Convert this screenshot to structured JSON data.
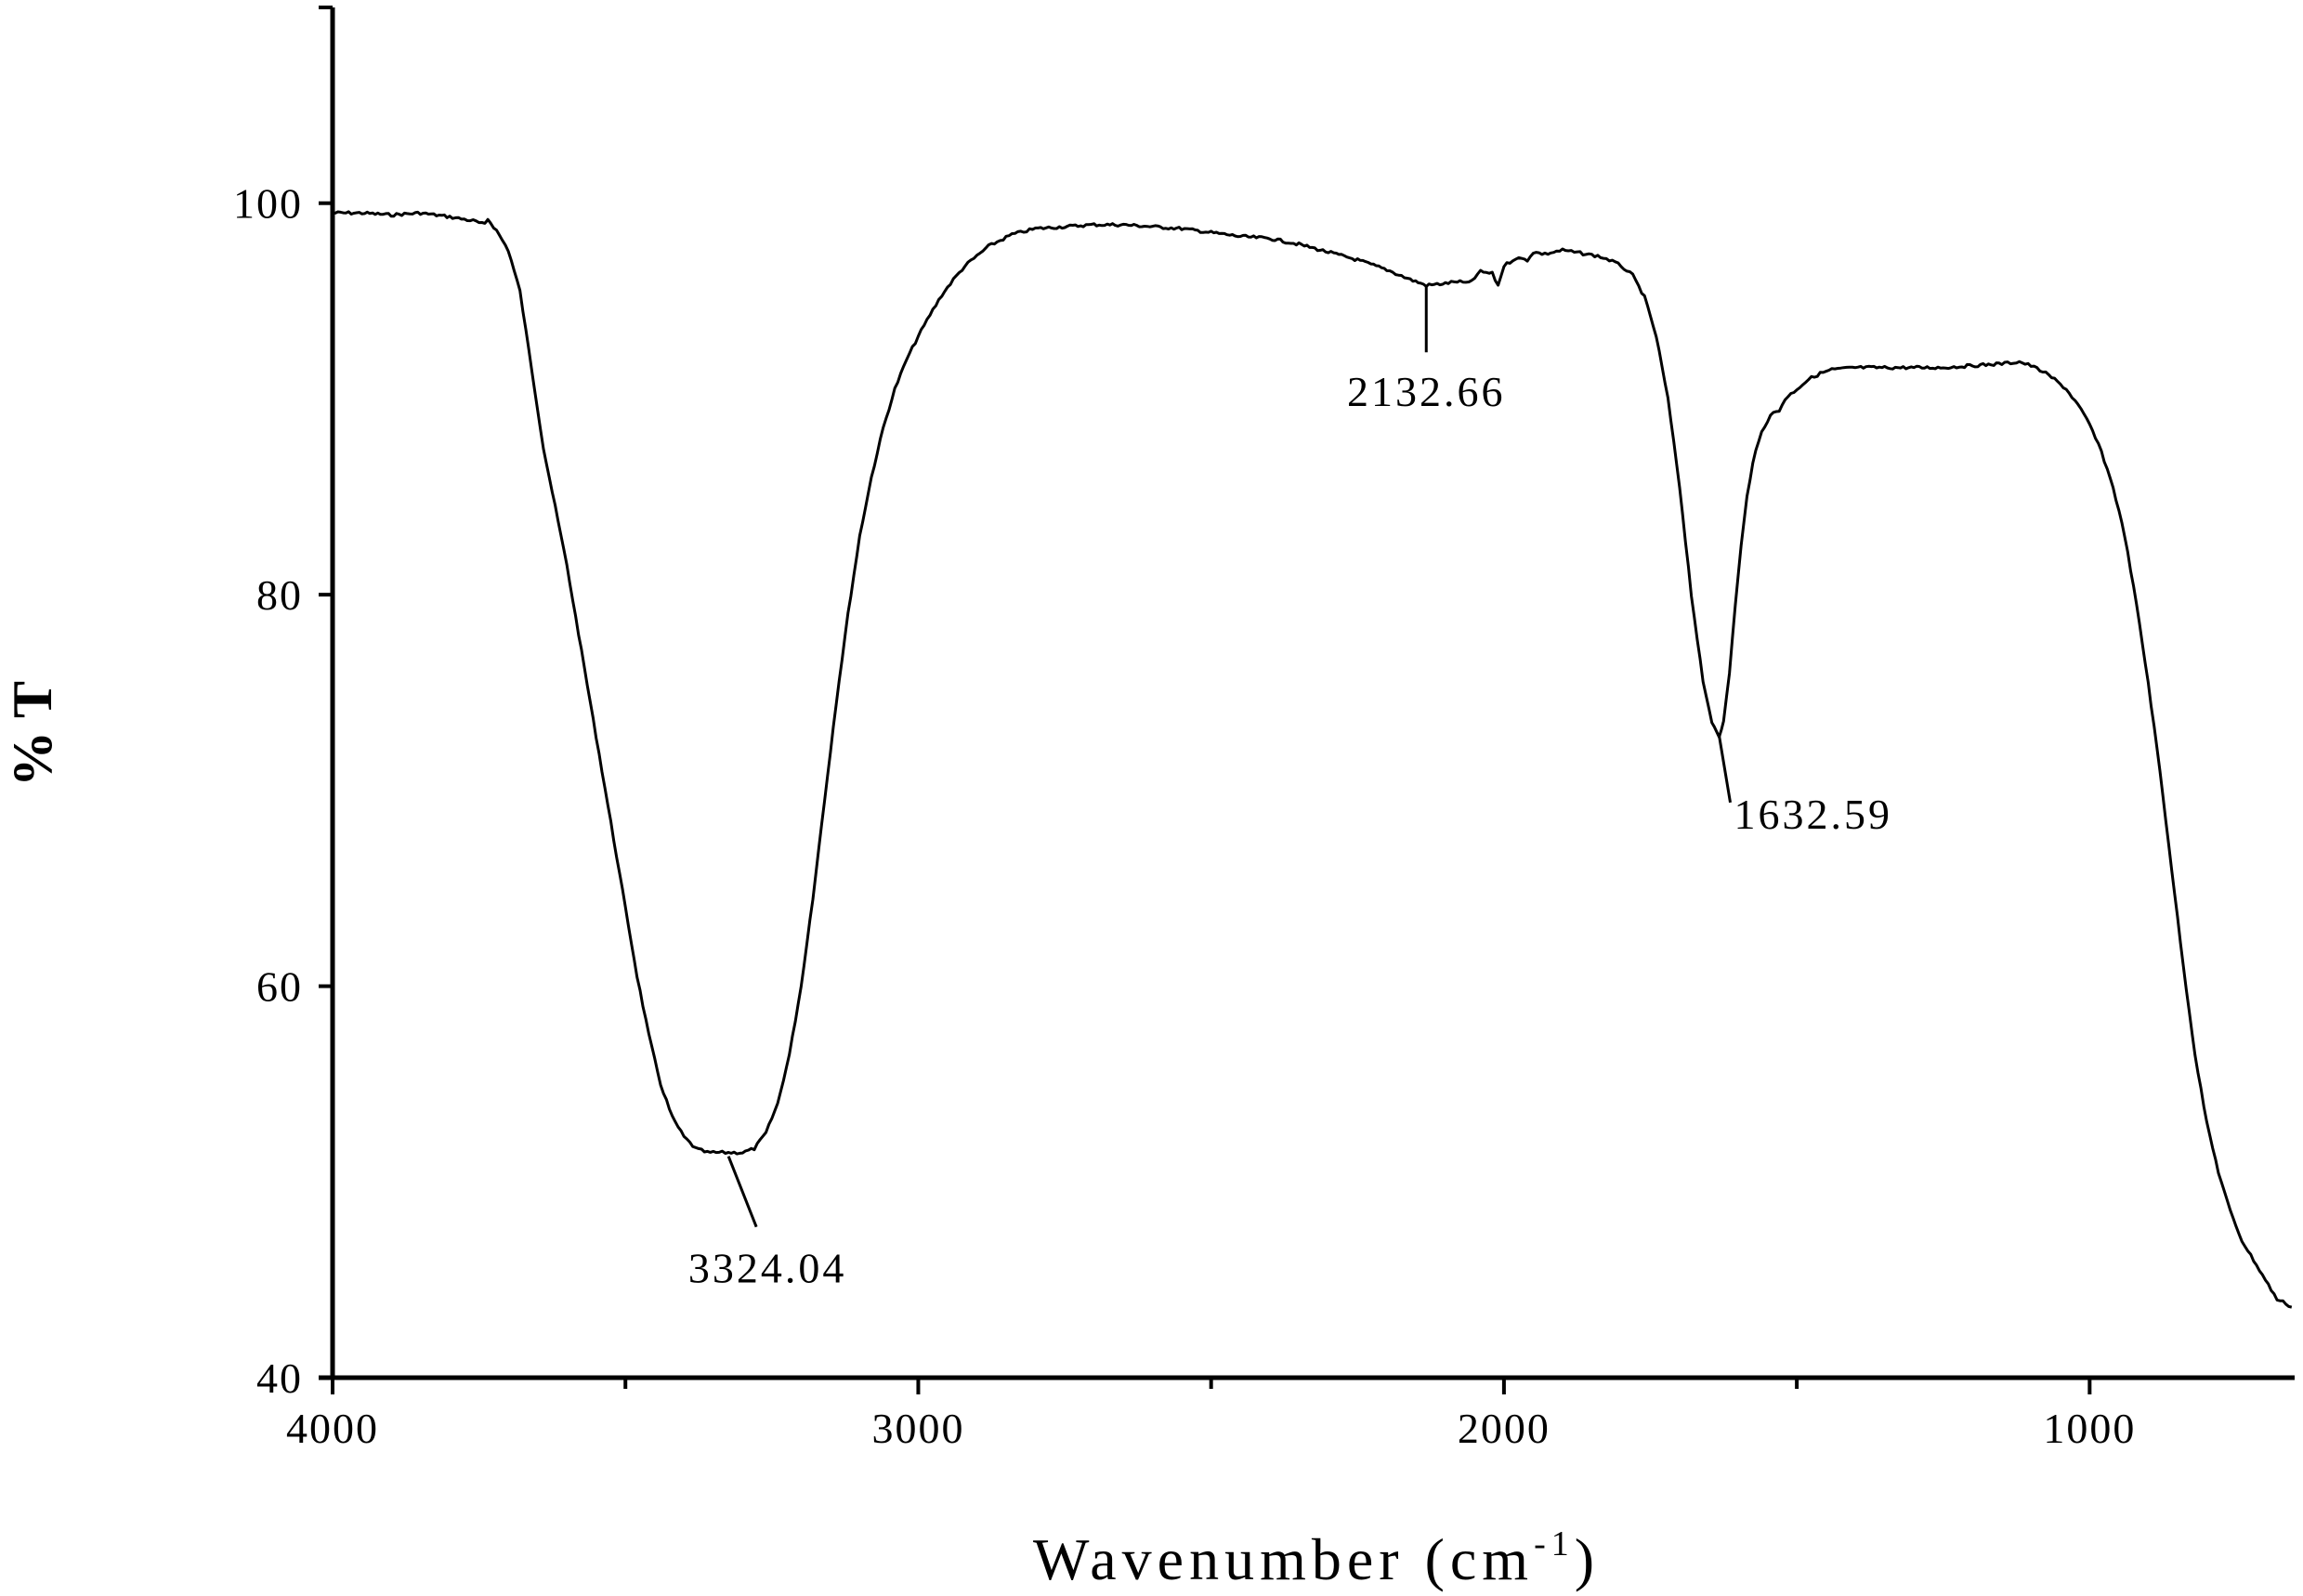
{
  "chart_data": {
    "type": "line",
    "title": "",
    "xlabel": "Wavenumber (cm",
    "xlabel_sup": "-1",
    "xlabel_close": ")",
    "ylabel": "% T",
    "xlim": [
      4000,
      650
    ],
    "ylim": [
      40,
      110
    ],
    "x_reversed": true,
    "grid": false,
    "x_ticks": [
      {
        "value": 4000,
        "label": "4000"
      },
      {
        "value": 3000,
        "label": "3000"
      },
      {
        "value": 2000,
        "label": "2000"
      },
      {
        "value": 1000,
        "label": "1000"
      }
    ],
    "x_minor_ticks": [
      3500,
      2500,
      1500
    ],
    "y_ticks": [
      {
        "value": 100,
        "label": "100"
      },
      {
        "value": 80,
        "label": "80"
      },
      {
        "value": 60,
        "label": "60"
      },
      {
        "value": 40,
        "label": "40"
      }
    ],
    "series": [
      {
        "points": [
          [
            4000,
            99.5
          ],
          [
            3950,
            99.5
          ],
          [
            3900,
            99.4
          ],
          [
            3850,
            99.5
          ],
          [
            3800,
            99.3
          ],
          [
            3760,
            99.1
          ],
          [
            3740,
            98.9
          ],
          [
            3735,
            99.2
          ],
          [
            3720,
            98.6
          ],
          [
            3700,
            97.6
          ],
          [
            3680,
            95.5
          ],
          [
            3660,
            91.5
          ],
          [
            3640,
            87.5
          ],
          [
            3620,
            84.5
          ],
          [
            3600,
            81.5
          ],
          [
            3580,
            78.0
          ],
          [
            3560,
            74.5
          ],
          [
            3540,
            71.0
          ],
          [
            3520,
            67.5
          ],
          [
            3500,
            64.0
          ],
          [
            3480,
            60.5
          ],
          [
            3460,
            57.5
          ],
          [
            3440,
            55.0
          ],
          [
            3420,
            53.3
          ],
          [
            3400,
            52.3
          ],
          [
            3380,
            51.7
          ],
          [
            3360,
            51.5
          ],
          [
            3340,
            51.5
          ],
          [
            3324.04,
            51.5
          ],
          [
            3300,
            51.5
          ],
          [
            3280,
            51.7
          ],
          [
            3260,
            52.5
          ],
          [
            3240,
            54.0
          ],
          [
            3220,
            56.5
          ],
          [
            3200,
            60.0
          ],
          [
            3180,
            64.5
          ],
          [
            3160,
            69.5
          ],
          [
            3140,
            74.5
          ],
          [
            3120,
            79.0
          ],
          [
            3100,
            83.0
          ],
          [
            3080,
            86.0
          ],
          [
            3060,
            88.5
          ],
          [
            3040,
            90.5
          ],
          [
            3020,
            92.0
          ],
          [
            3000,
            93.2
          ],
          [
            2980,
            94.3
          ],
          [
            2960,
            95.3
          ],
          [
            2940,
            96.1
          ],
          [
            2920,
            96.8
          ],
          [
            2900,
            97.3
          ],
          [
            2880,
            97.8
          ],
          [
            2860,
            98.1
          ],
          [
            2840,
            98.4
          ],
          [
            2800,
            98.7
          ],
          [
            2750,
            98.8
          ],
          [
            2700,
            98.9
          ],
          [
            2650,
            98.9
          ],
          [
            2600,
            98.8
          ],
          [
            2550,
            98.7
          ],
          [
            2500,
            98.5
          ],
          [
            2450,
            98.3
          ],
          [
            2400,
            98.2
          ],
          [
            2350,
            97.9
          ],
          [
            2300,
            97.5
          ],
          [
            2250,
            97.1
          ],
          [
            2200,
            96.6
          ],
          [
            2160,
            96.1
          ],
          [
            2132.66,
            95.8
          ],
          [
            2100,
            95.9
          ],
          [
            2080,
            96.0
          ],
          [
            2060,
            95.9
          ],
          [
            2040,
            96.5
          ],
          [
            2020,
            96.4
          ],
          [
            2010,
            95.8
          ],
          [
            2000,
            96.8
          ],
          [
            1980,
            97.2
          ],
          [
            1960,
            97.1
          ],
          [
            1950,
            97.5
          ],
          [
            1930,
            97.4
          ],
          [
            1900,
            97.6
          ],
          [
            1880,
            97.5
          ],
          [
            1860,
            97.4
          ],
          [
            1840,
            97.3
          ],
          [
            1820,
            97.1
          ],
          [
            1800,
            96.8
          ],
          [
            1780,
            96.3
          ],
          [
            1760,
            95.2
          ],
          [
            1740,
            93.2
          ],
          [
            1720,
            90.0
          ],
          [
            1700,
            85.5
          ],
          [
            1680,
            80.0
          ],
          [
            1660,
            75.5
          ],
          [
            1645,
            73.5
          ],
          [
            1632.59,
            72.8
          ],
          [
            1625,
            73.5
          ],
          [
            1615,
            76.0
          ],
          [
            1605,
            79.5
          ],
          [
            1595,
            82.5
          ],
          [
            1585,
            85.0
          ],
          [
            1575,
            86.8
          ],
          [
            1560,
            88.3
          ],
          [
            1545,
            89.2
          ],
          [
            1530,
            89.4
          ],
          [
            1520,
            90.0
          ],
          [
            1500,
            90.5
          ],
          [
            1480,
            91.0
          ],
          [
            1460,
            91.3
          ],
          [
            1440,
            91.5
          ],
          [
            1400,
            91.6
          ],
          [
            1350,
            91.6
          ],
          [
            1300,
            91.6
          ],
          [
            1250,
            91.6
          ],
          [
            1200,
            91.7
          ],
          [
            1150,
            91.8
          ],
          [
            1120,
            91.9
          ],
          [
            1100,
            91.7
          ],
          [
            1080,
            91.4
          ],
          [
            1060,
            91.0
          ],
          [
            1040,
            90.5
          ],
          [
            1020,
            89.7
          ],
          [
            1000,
            88.7
          ],
          [
            980,
            87.3
          ],
          [
            960,
            85.5
          ],
          [
            940,
            83.0
          ],
          [
            920,
            79.5
          ],
          [
            900,
            75.5
          ],
          [
            880,
            71.0
          ],
          [
            860,
            66.0
          ],
          [
            840,
            61.0
          ],
          [
            820,
            56.5
          ],
          [
            800,
            53.0
          ],
          [
            780,
            50.5
          ],
          [
            760,
            48.5
          ],
          [
            740,
            47.0
          ],
          [
            720,
            46.0
          ],
          [
            700,
            45.0
          ],
          [
            680,
            44.0
          ],
          [
            665,
            43.8
          ],
          [
            655,
            43.6
          ]
        ]
      }
    ],
    "annotations": [
      {
        "label": "3324.04",
        "x": 3324.04,
        "y": 51.5
      },
      {
        "label": "2132.66",
        "x": 2132.66,
        "y": 95.8
      },
      {
        "label": "1632.59",
        "x": 1632.59,
        "y": 72.8
      }
    ]
  }
}
